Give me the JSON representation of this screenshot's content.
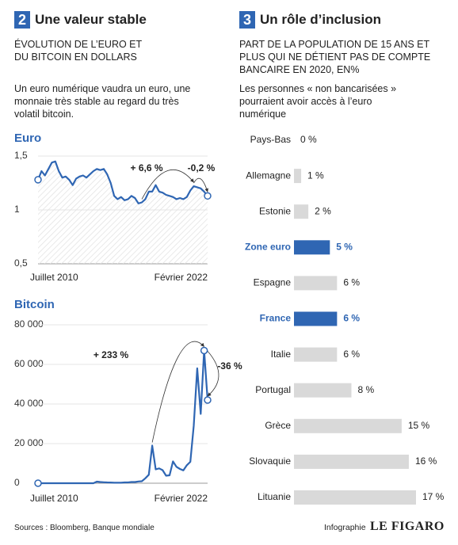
{
  "left": {
    "number": "2",
    "title": "Une valeur stable",
    "subtitle": "ÉVOLUTION DE L’EURO ET DU BITCOIN EN DOLLARS",
    "text": "Un euro numérique vaudra un euro, une monnaie très stable au regard du très volatil bitcoin."
  },
  "right": {
    "number": "3",
    "title": "Un rôle d’inclusion",
    "subtitle": "PART DE LA POPULATION DE 15 ANS ET PLUS QUI NE DÉTIENT PAS DE COMPTE BANCAIRE EN 2020, EN%",
    "text": "Les personnes « non bancarisées » pourraient avoir accès à l’euro numérique"
  },
  "footer": {
    "source": "Sources : Bloomberg, Banque mondiale",
    "credit": "Infographie",
    "logo": "LE FIGARO"
  },
  "chart_data": [
    {
      "type": "line",
      "title": "Euro",
      "color": "#2f66b3",
      "grid": true,
      "categories": [
        "Juillet 2010",
        null,
        null,
        null,
        null,
        null,
        null,
        null,
        null,
        null,
        null,
        null,
        null,
        null,
        null,
        null,
        null,
        null,
        null,
        null,
        null,
        null,
        null,
        null,
        null,
        null,
        null,
        null,
        null,
        null,
        null,
        null,
        null,
        null,
        null,
        null,
        null,
        null,
        null,
        null,
        null,
        null,
        null,
        null,
        null,
        null,
        null,
        null,
        null,
        "Février 2022"
      ],
      "values": [
        1.28,
        1.36,
        1.32,
        1.38,
        1.44,
        1.45,
        1.36,
        1.3,
        1.31,
        1.28,
        1.23,
        1.29,
        1.31,
        1.32,
        1.3,
        1.33,
        1.36,
        1.38,
        1.37,
        1.38,
        1.33,
        1.25,
        1.13,
        1.1,
        1.12,
        1.09,
        1.1,
        1.13,
        1.11,
        1.06,
        1.07,
        1.1,
        1.17,
        1.17,
        1.23,
        1.17,
        1.16,
        1.14,
        1.13,
        1.12,
        1.1,
        1.11,
        1.1,
        1.12,
        1.18,
        1.22,
        1.21,
        1.2,
        1.17,
        1.13
      ],
      "ylim": [
        0.5,
        1.5
      ],
      "yticks": [
        {
          "value": 0.5,
          "label": "0,5"
        },
        1,
        {
          "value": 1.5,
          "label": "1,5"
        }
      ],
      "annotations": [
        "+ 6,6 %",
        "-0,2 %"
      ]
    },
    {
      "type": "line",
      "title": "Bitcoin",
      "color": "#2f66b3",
      "grid": true,
      "categories": [
        "Juillet 2010",
        null,
        null,
        null,
        null,
        null,
        null,
        null,
        null,
        null,
        null,
        null,
        null,
        null,
        null,
        null,
        null,
        null,
        null,
        null,
        null,
        null,
        null,
        null,
        null,
        null,
        null,
        null,
        null,
        null,
        null,
        null,
        null,
        null,
        null,
        null,
        null,
        null,
        null,
        null,
        null,
        null,
        null,
        null,
        null,
        null,
        null,
        null,
        null,
        "Février 2022"
      ],
      "values": [
        0,
        0,
        0,
        0,
        0,
        0,
        0,
        0,
        0,
        0,
        0,
        0,
        0,
        0,
        0,
        0,
        0,
        800,
        600,
        500,
        400,
        350,
        250,
        250,
        240,
        400,
        420,
        600,
        610,
        900,
        1000,
        2500,
        4300,
        19000,
        7000,
        7500,
        6600,
        3800,
        4000,
        11000,
        8300,
        7200,
        6500,
        9100,
        10800,
        29000,
        58000,
        35000,
        67000,
        42000
      ],
      "ylim": [
        0,
        80000
      ],
      "yticks": [
        0,
        {
          "value": 20000,
          "label": "20 000"
        },
        {
          "value": 40000,
          "label": "40 000"
        },
        {
          "value": 60000,
          "label": "60 000"
        },
        {
          "value": 80000,
          "label": "80 000"
        }
      ],
      "annotations": [
        "+ 233 %",
        "-36 %"
      ]
    },
    {
      "type": "barh",
      "color": "#d9d9d9",
      "categories": [
        "Pays-Bas",
        "Allemagne",
        "Estonie",
        "Zone euro",
        "Espagne",
        "France",
        "Italie",
        "Portugal",
        "Grèce",
        "Slovaquie",
        "Lituanie"
      ],
      "values": [
        0,
        1,
        2,
        5,
        6,
        6,
        6,
        8,
        15,
        16,
        17
      ],
      "value_labels": [
        "0 %",
        "1 %",
        "2 %",
        "5 %",
        "6 %",
        "6 %",
        "6 %",
        "8 %",
        "15 %",
        "16 %",
        "17 %"
      ],
      "colors": [
        "#d9d9d9",
        "#d9d9d9",
        "#d9d9d9",
        "#2f66b3",
        "#d9d9d9",
        "#2f66b3",
        "#d9d9d9",
        "#d9d9d9",
        "#d9d9d9",
        "#d9d9d9",
        "#d9d9d9"
      ],
      "xlim": [
        0,
        17
      ]
    }
  ]
}
